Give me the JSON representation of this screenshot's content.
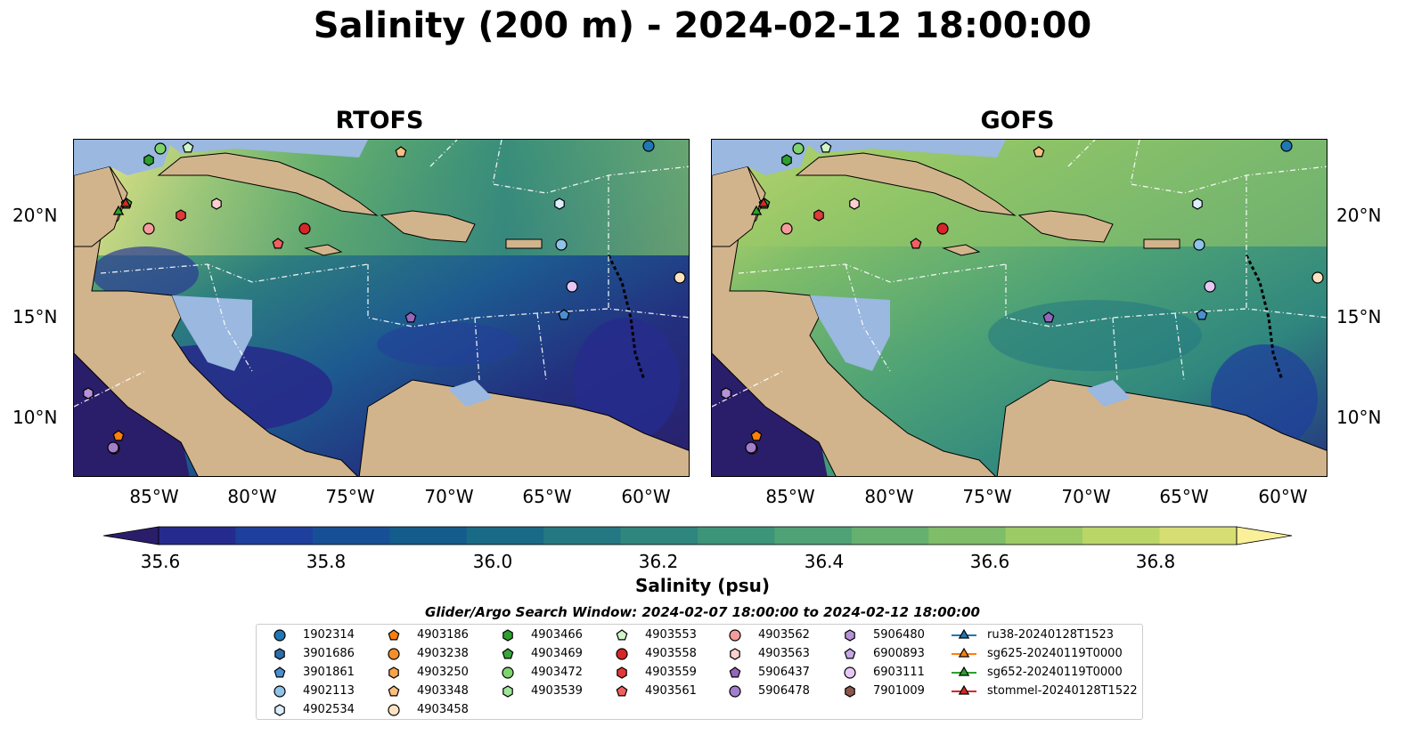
{
  "title": "Salinity (200 m) - 2024-02-12 18:00:00",
  "panels": [
    {
      "title": "RTOFS"
    },
    {
      "title": "GOFS"
    }
  ],
  "lat_labels": [
    "20°N",
    "15°N",
    "10°N"
  ],
  "lon_labels": [
    "85°W",
    "80°W",
    "75°W",
    "70°W",
    "65°W",
    "60°W"
  ],
  "colorbar": {
    "label": "Salinity (psu)",
    "ticks": [
      "35.6",
      "35.8",
      "36.0",
      "36.2",
      "36.4",
      "36.6",
      "36.8"
    ],
    "colors": [
      "#2a1e6b",
      "#252b8e",
      "#1f3f9c",
      "#174f96",
      "#135c8c",
      "#186a86",
      "#237882",
      "#2f867e",
      "#3c9479",
      "#4ea276",
      "#66b06f",
      "#7fbd69",
      "#9ccb66",
      "#bad667",
      "#d6de73",
      "#faf09a"
    ]
  },
  "search_window": "Glider/Argo Search Window: 2024-02-07 18:00:00 to 2024-02-12 18:00:00",
  "legend": [
    {
      "label": "1902314",
      "marker": "circle",
      "color": "#1f77b4"
    },
    {
      "label": "3901686",
      "marker": "hexagon",
      "color": "#2b6fa8"
    },
    {
      "label": "3901861",
      "marker": "pentagon",
      "color": "#4a8fd0"
    },
    {
      "label": "4902113",
      "marker": "circle",
      "color": "#8fc3e8"
    },
    {
      "label": "4902534",
      "marker": "hexagon",
      "color": "#dceeff"
    },
    {
      "label": "4903186",
      "marker": "pentagon",
      "color": "#ff7f0e"
    },
    {
      "label": "4903238",
      "marker": "circle",
      "color": "#f28e2b"
    },
    {
      "label": "4903250",
      "marker": "hexagon",
      "color": "#f7a54a"
    },
    {
      "label": "4903348",
      "marker": "pentagon",
      "color": "#fbbf80"
    },
    {
      "label": "4903458",
      "marker": "circle",
      "color": "#ffe3c0"
    },
    {
      "label": "4903466",
      "marker": "hexagon",
      "color": "#2ca02c"
    },
    {
      "label": "4903469",
      "marker": "pentagon",
      "color": "#38a63a"
    },
    {
      "label": "4903472",
      "marker": "circle",
      "color": "#7fd36e"
    },
    {
      "label": "4903539",
      "marker": "hexagon",
      "color": "#9ee69a"
    },
    {
      "label": "4903553",
      "marker": "pentagon",
      "color": "#d0f5c8"
    },
    {
      "label": "4903558",
      "marker": "circle",
      "color": "#d62728"
    },
    {
      "label": "4903559",
      "marker": "hexagon",
      "color": "#e0393a"
    },
    {
      "label": "4903561",
      "marker": "pentagon",
      "color": "#f06060"
    },
    {
      "label": "4903562",
      "marker": "circle",
      "color": "#f49c9c"
    },
    {
      "label": "4903563",
      "marker": "hexagon",
      "color": "#fcd0d0"
    },
    {
      "label": "5906437",
      "marker": "pentagon",
      "color": "#9467bd"
    },
    {
      "label": "5906478",
      "marker": "circle",
      "color": "#a27fcb"
    },
    {
      "label": "5906480",
      "marker": "hexagon",
      "color": "#b692d8"
    },
    {
      "label": "6900893",
      "marker": "pentagon",
      "color": "#c6a6e8"
    },
    {
      "label": "6903111",
      "marker": "circle",
      "color": "#e6c8f5"
    },
    {
      "label": "7901009",
      "marker": "hexagon",
      "color": "#8c564b"
    },
    {
      "label": "ru38-20240128T1523",
      "marker": "triangle",
      "color": "#1f77b4"
    },
    {
      "label": "sg625-20240119T0000",
      "marker": "triangle",
      "color": "#ff7f0e"
    },
    {
      "label": "sg652-20240119T0000",
      "marker": "triangle",
      "color": "#2ca02c"
    },
    {
      "label": "stommel-20240128T1522",
      "marker": "triangle",
      "color": "#d62728"
    }
  ],
  "colors": {
    "land": "#d2b48c",
    "shelf": "#9ab8e0",
    "deep": "#2a1e6b",
    "eez_line": "#ffffff"
  }
}
